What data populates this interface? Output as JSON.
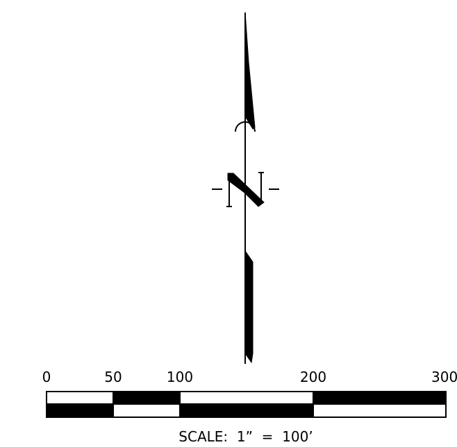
{
  "north_arrow": {
    "letter": "N",
    "color": "#000000"
  },
  "scale_bar": {
    "tick_labels": [
      "0",
      "50",
      "100",
      "200",
      "300"
    ],
    "caption": "SCALE:  1”  =  100’",
    "fill_color": "#000000",
    "empty_color": "#ffffff"
  }
}
